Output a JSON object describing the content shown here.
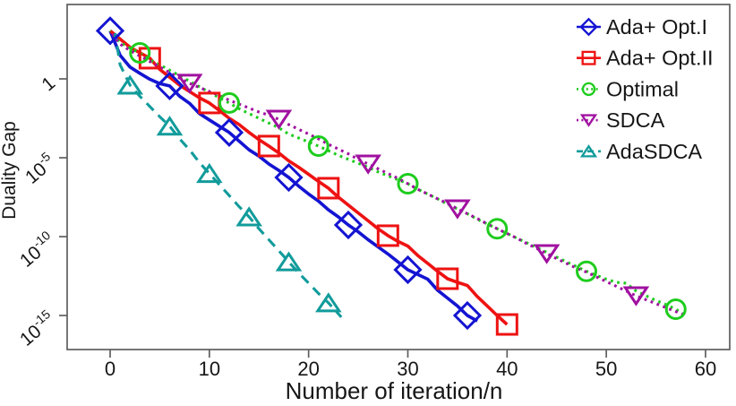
{
  "figure_background": "#ffffff",
  "chart_data": {
    "type": "line",
    "title": "",
    "xlabel": "Number of iteration/n",
    "ylabel": "Duality Gap",
    "y_scale": "log10",
    "y_values_are": "log10(duality gap)",
    "axes": {
      "x": {
        "ticks": [
          0,
          10,
          20,
          30,
          40,
          50,
          60
        ],
        "shown_range": [
          -4.3,
          62.4
        ]
      },
      "y": {
        "ticks": [
          {
            "log10": 0,
            "label": "1",
            "base": "1",
            "exp": ""
          },
          {
            "log10": -5,
            "label": "10^-5",
            "base": "10",
            "exp": "-5"
          },
          {
            "log10": -10,
            "label": "10^-10",
            "base": "10",
            "exp": "-10"
          },
          {
            "log10": -15,
            "label": "10^-15",
            "base": "10",
            "exp": "-15"
          }
        ],
        "shown_range_log10": [
          4.7,
          -17.2
        ]
      }
    },
    "colors": {
      "axis": "#5f5f5f",
      "text": "#161616",
      "blue": "#1414d2",
      "red": "#ee1212",
      "green": "#1ecc1e",
      "purple": "#a011a0",
      "teal": "#129b9b"
    },
    "legend": {
      "position": "top-right-inside",
      "entries": [
        "Ada+ Opt.I",
        "Ada+ Opt.II",
        "Optimal",
        "SDCA",
        "AdaSDCA"
      ]
    },
    "series": [
      {
        "name": "Ada+ Opt.I",
        "color": "#1414d2",
        "line": "solid",
        "marker": "diamond",
        "points": [
          [
            0,
            3.05
          ],
          [
            1,
            1.5
          ],
          [
            2,
            0.75
          ],
          [
            3,
            0.35
          ],
          [
            4,
            -0.02
          ],
          [
            5,
            -0.3
          ],
          [
            6,
            -0.45
          ],
          [
            7,
            -1.1
          ],
          [
            8,
            -1.55
          ],
          [
            9,
            -2.2
          ],
          [
            10,
            -2.6
          ],
          [
            11,
            -3.0
          ],
          [
            12,
            -3.4
          ],
          [
            13,
            -3.95
          ],
          [
            14,
            -4.5
          ],
          [
            15,
            -4.9
          ],
          [
            16,
            -5.4
          ],
          [
            17,
            -5.8
          ],
          [
            18,
            -6.25
          ],
          [
            19,
            -6.8
          ],
          [
            20,
            -7.3
          ],
          [
            21,
            -7.75
          ],
          [
            22,
            -8.3
          ],
          [
            23,
            -8.75
          ],
          [
            24,
            -9.26
          ],
          [
            25,
            -9.7
          ],
          [
            26,
            -10.2
          ],
          [
            27,
            -10.65
          ],
          [
            28,
            -11.1
          ],
          [
            29,
            -11.6
          ],
          [
            30,
            -12.1
          ],
          [
            31,
            -12.4
          ],
          [
            32,
            -12.7
          ],
          [
            33,
            -13.4
          ],
          [
            34,
            -13.9
          ],
          [
            35,
            -14.4
          ],
          [
            36,
            -15.0
          ],
          [
            37,
            -15.35
          ]
        ],
        "marker_points": [
          [
            0,
            3.05
          ],
          [
            6,
            -0.45
          ],
          [
            12,
            -3.4
          ],
          [
            18,
            -6.25
          ],
          [
            24,
            -9.26
          ],
          [
            30,
            -12.1
          ],
          [
            36,
            -15.0
          ]
        ]
      },
      {
        "name": "Ada+ Opt.II",
        "color": "#ee1212",
        "line": "solid",
        "marker": "square",
        "points": [
          [
            0,
            3.05
          ],
          [
            2,
            2.0
          ],
          [
            4,
            1.31
          ],
          [
            5,
            0.6
          ],
          [
            6,
            0.1
          ],
          [
            7,
            -0.4
          ],
          [
            8,
            -0.8
          ],
          [
            9,
            -1.2
          ],
          [
            10,
            -1.53
          ],
          [
            11,
            -2.0
          ],
          [
            12,
            -2.5
          ],
          [
            13,
            -2.9
          ],
          [
            14,
            -3.4
          ],
          [
            15,
            -3.85
          ],
          [
            16,
            -4.26
          ],
          [
            17,
            -4.7
          ],
          [
            18,
            -5.2
          ],
          [
            19,
            -5.6
          ],
          [
            20,
            -6.05
          ],
          [
            21,
            -6.5
          ],
          [
            22,
            -6.93
          ],
          [
            23,
            -7.5
          ],
          [
            24,
            -8.0
          ],
          [
            25,
            -8.5
          ],
          [
            26,
            -9.0
          ],
          [
            27,
            -9.5
          ],
          [
            28,
            -9.94
          ],
          [
            29,
            -10.3
          ],
          [
            30,
            -10.6
          ],
          [
            31,
            -11.2
          ],
          [
            32,
            -11.7
          ],
          [
            33,
            -12.2
          ],
          [
            34,
            -12.67
          ],
          [
            35,
            -12.9
          ],
          [
            36,
            -13.1
          ],
          [
            37,
            -13.8
          ],
          [
            38,
            -14.4
          ],
          [
            39,
            -15.0
          ],
          [
            40,
            -15.57
          ]
        ],
        "marker_points": [
          [
            4,
            1.31
          ],
          [
            10,
            -1.53
          ],
          [
            16,
            -4.26
          ],
          [
            22,
            -6.93
          ],
          [
            28,
            -9.94
          ],
          [
            34,
            -12.67
          ],
          [
            40,
            -15.57
          ]
        ]
      },
      {
        "name": "Optimal",
        "color": "#1ecc1e",
        "line": "dotted",
        "marker": "circle",
        "points": [
          [
            0,
            3.05
          ],
          [
            1,
            2.3
          ],
          [
            2,
            1.95
          ],
          [
            3,
            1.65
          ],
          [
            4,
            1.2
          ],
          [
            5,
            0.9
          ],
          [
            6,
            0.55
          ],
          [
            7,
            0.2
          ],
          [
            8,
            -0.15
          ],
          [
            9,
            -0.5
          ],
          [
            10,
            -0.85
          ],
          [
            11,
            -1.2
          ],
          [
            12,
            -1.53
          ],
          [
            13,
            -1.9
          ],
          [
            14,
            -2.2
          ],
          [
            15,
            -2.5
          ],
          [
            16,
            -2.8
          ],
          [
            17,
            -3.1
          ],
          [
            18,
            -3.5
          ],
          [
            19,
            -3.75
          ],
          [
            20,
            -4.0
          ],
          [
            21,
            -4.26
          ],
          [
            22,
            -4.55
          ],
          [
            23,
            -4.85
          ],
          [
            24,
            -5.1
          ],
          [
            25,
            -5.35
          ],
          [
            26,
            -5.6
          ],
          [
            27,
            -5.9
          ],
          [
            28,
            -6.15
          ],
          [
            29,
            -6.4
          ],
          [
            30,
            -6.65
          ],
          [
            31,
            -7.0
          ],
          [
            32,
            -7.3
          ],
          [
            33,
            -7.6
          ],
          [
            34,
            -7.95
          ],
          [
            35,
            -8.25
          ],
          [
            36,
            -8.55
          ],
          [
            37,
            -8.9
          ],
          [
            38,
            -9.2
          ],
          [
            39,
            -9.5
          ],
          [
            40,
            -9.8
          ],
          [
            41,
            -10.1
          ],
          [
            42,
            -10.4
          ],
          [
            43,
            -10.7
          ],
          [
            44,
            -11.0
          ],
          [
            45,
            -11.3
          ],
          [
            46,
            -11.6
          ],
          [
            47,
            -11.9
          ],
          [
            48,
            -12.2
          ],
          [
            49,
            -12.45
          ],
          [
            50,
            -12.7
          ],
          [
            51,
            -12.9
          ],
          [
            52,
            -12.95
          ],
          [
            53,
            -13.45
          ],
          [
            54,
            -13.75
          ],
          [
            55,
            -14.05
          ],
          [
            56,
            -14.3
          ],
          [
            57,
            -14.6
          ],
          [
            58,
            -15.0
          ]
        ],
        "marker_points": [
          [
            3,
            1.65
          ],
          [
            12,
            -1.53
          ],
          [
            21,
            -4.26
          ],
          [
            30,
            -6.65
          ],
          [
            39,
            -9.5
          ],
          [
            48,
            -12.2
          ],
          [
            57,
            -14.6
          ]
        ]
      },
      {
        "name": "SDCA",
        "color": "#a011a0",
        "line": "dotted",
        "marker": "triangle-down",
        "points": [
          [
            0,
            3.05
          ],
          [
            1,
            2.2
          ],
          [
            2,
            1.8
          ],
          [
            3,
            1.45
          ],
          [
            4,
            1.1
          ],
          [
            5,
            0.75
          ],
          [
            6,
            0.4
          ],
          [
            7,
            0.05
          ],
          [
            8,
            -0.28
          ],
          [
            9,
            -0.55
          ],
          [
            10,
            -0.8
          ],
          [
            11,
            -1.05
          ],
          [
            12,
            -1.35
          ],
          [
            13,
            -1.6
          ],
          [
            14,
            -1.85
          ],
          [
            15,
            -2.1
          ],
          [
            16,
            -2.3
          ],
          [
            17,
            -2.56
          ],
          [
            18,
            -2.9
          ],
          [
            19,
            -3.2
          ],
          [
            20,
            -3.5
          ],
          [
            21,
            -3.8
          ],
          [
            22,
            -4.15
          ],
          [
            23,
            -4.45
          ],
          [
            24,
            -4.75
          ],
          [
            25,
            -5.1
          ],
          [
            26,
            -5.4
          ],
          [
            27,
            -5.7
          ],
          [
            28,
            -6.0
          ],
          [
            29,
            -6.3
          ],
          [
            30,
            -6.65
          ],
          [
            31,
            -7.0
          ],
          [
            32,
            -7.3
          ],
          [
            33,
            -7.6
          ],
          [
            34,
            -7.9
          ],
          [
            35,
            -8.24
          ],
          [
            36,
            -8.55
          ],
          [
            37,
            -8.85
          ],
          [
            38,
            -9.2
          ],
          [
            39,
            -9.5
          ],
          [
            40,
            -9.8
          ],
          [
            41,
            -10.1
          ],
          [
            42,
            -10.45
          ],
          [
            43,
            -10.75
          ],
          [
            44,
            -11.08
          ],
          [
            45,
            -11.4
          ],
          [
            46,
            -11.7
          ],
          [
            47,
            -12.0
          ],
          [
            48,
            -12.25
          ],
          [
            49,
            -12.55
          ],
          [
            50,
            -12.85
          ],
          [
            51,
            -13.15
          ],
          [
            52,
            -13.45
          ],
          [
            53,
            -13.75
          ],
          [
            54,
            -14.0
          ],
          [
            55,
            -14.25
          ],
          [
            56,
            -14.5
          ],
          [
            57,
            -14.75
          ],
          [
            58,
            -15.0
          ]
        ],
        "marker_points": [
          [
            8,
            -0.28
          ],
          [
            17,
            -2.56
          ],
          [
            26,
            -5.4
          ],
          [
            35,
            -8.24
          ],
          [
            44,
            -11.08
          ],
          [
            53,
            -13.75
          ]
        ]
      },
      {
        "name": "AdaSDCA",
        "color": "#129b9b",
        "line": "dashed",
        "marker": "triangle-up",
        "points": [
          [
            0.5,
            2.9
          ],
          [
            1,
            0.9
          ],
          [
            2,
            -0.4
          ],
          [
            3,
            -1.1
          ],
          [
            4,
            -1.75
          ],
          [
            5,
            -2.4
          ],
          [
            6,
            -3.0
          ],
          [
            7,
            -3.8
          ],
          [
            8,
            -4.5
          ],
          [
            9,
            -5.3
          ],
          [
            10,
            -6.0
          ],
          [
            11,
            -6.7
          ],
          [
            12,
            -7.4
          ],
          [
            13,
            -8.1
          ],
          [
            14,
            -8.75
          ],
          [
            15,
            -9.5
          ],
          [
            16,
            -10.2
          ],
          [
            17,
            -10.9
          ],
          [
            18,
            -11.6
          ],
          [
            19,
            -12.3
          ],
          [
            20,
            -12.95
          ],
          [
            21,
            -13.6
          ],
          [
            22,
            -14.2
          ],
          [
            23.3,
            -15.1
          ]
        ],
        "marker_points": [
          [
            2,
            -0.4
          ],
          [
            6,
            -3.0
          ],
          [
            10,
            -6.0
          ],
          [
            14,
            -8.75
          ],
          [
            18,
            -11.6
          ],
          [
            22,
            -14.2
          ]
        ]
      }
    ]
  }
}
